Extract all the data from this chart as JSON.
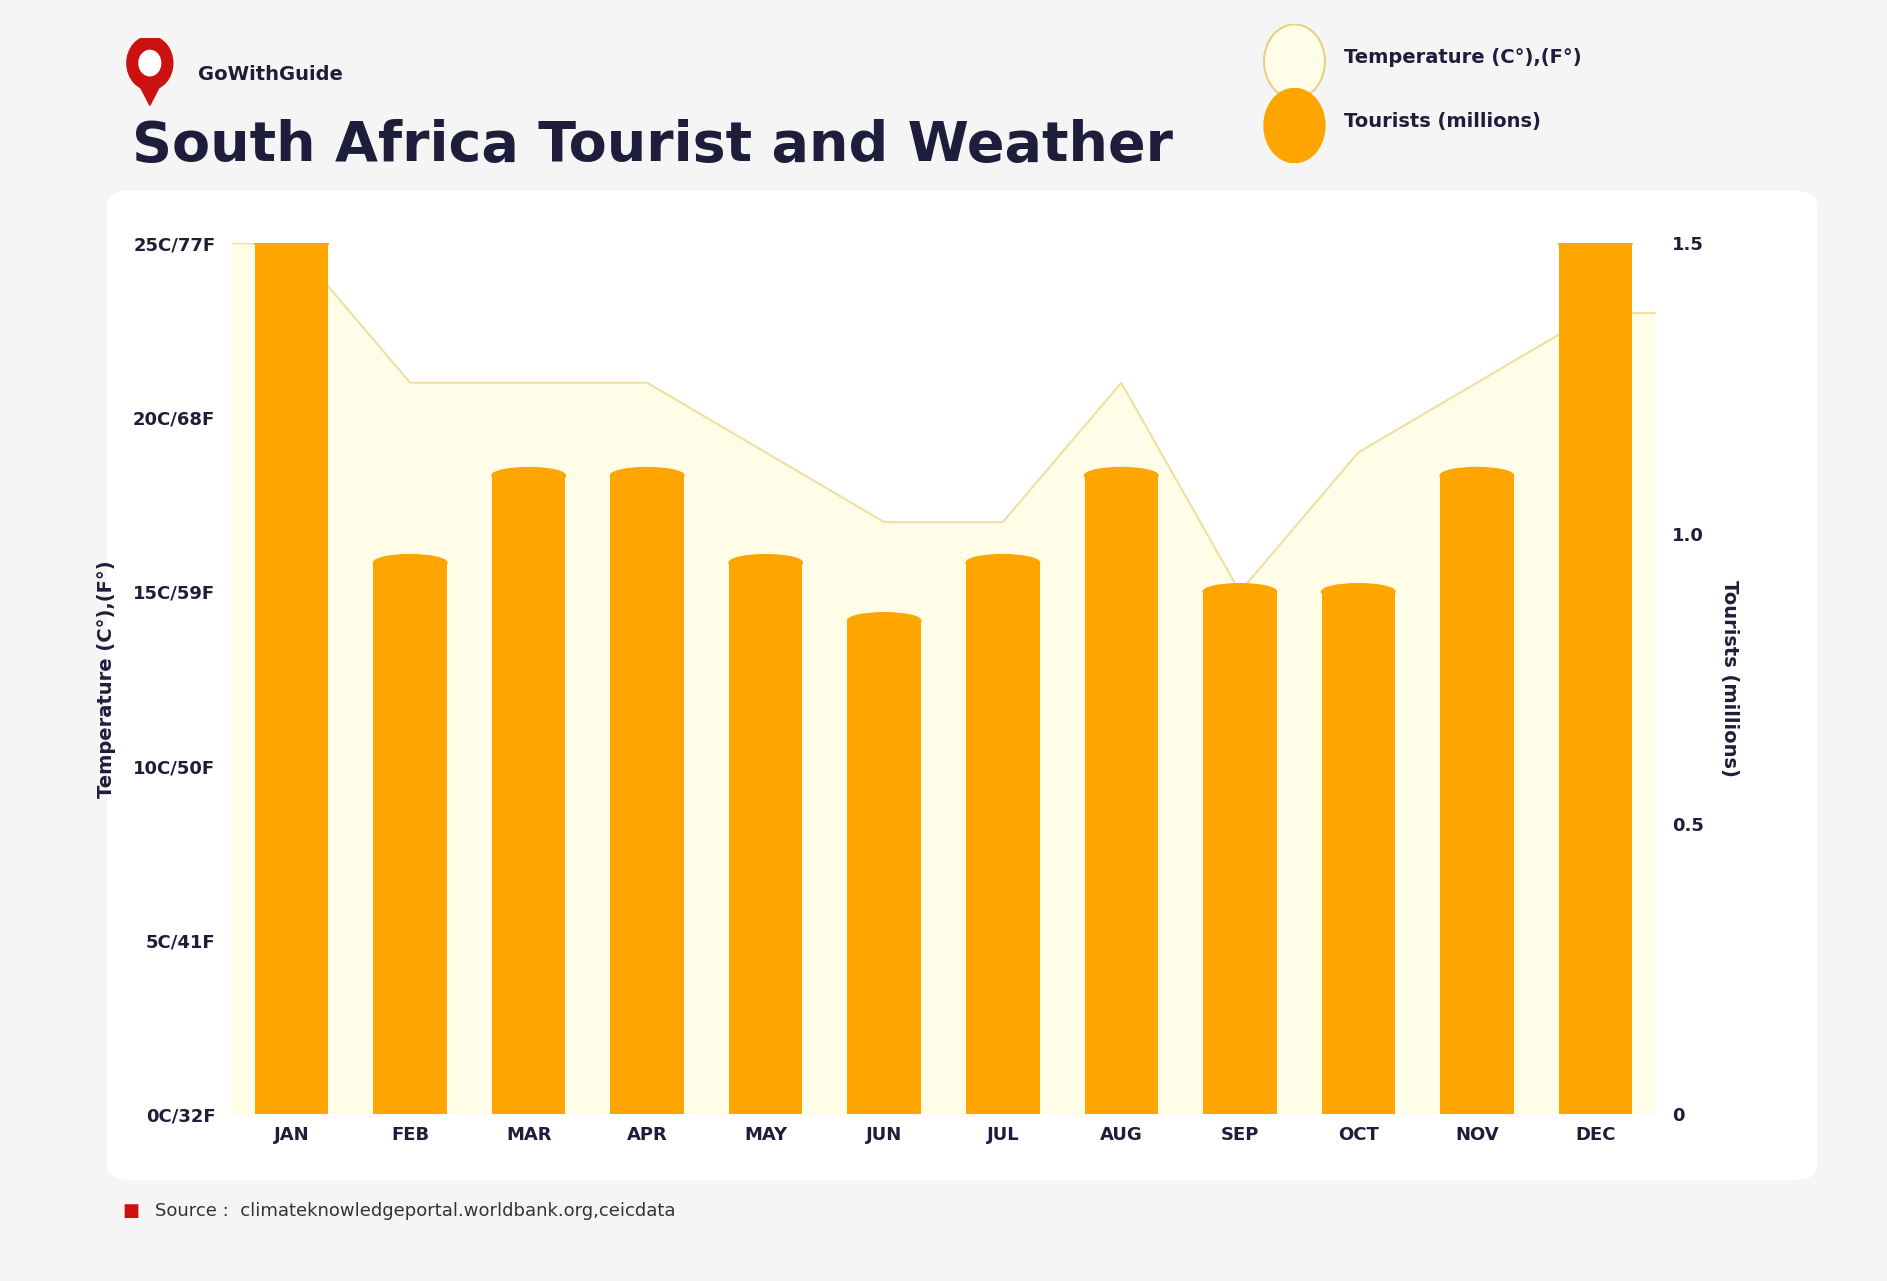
{
  "months": [
    "JAN",
    "FEB",
    "MAR",
    "APR",
    "MAY",
    "JUN",
    "JUL",
    "AUG",
    "SEP",
    "OCT",
    "NOV",
    "DEC"
  ],
  "tourists_millions": [
    1.5,
    0.95,
    1.1,
    1.1,
    0.95,
    0.85,
    0.95,
    1.1,
    0.9,
    0.9,
    1.1,
    1.5
  ],
  "temperature_c": [
    25,
    21,
    21,
    21,
    19,
    17,
    17,
    21,
    15,
    19,
    21,
    23
  ],
  "bar_color": "#FFA500",
  "area_color": "#FFFDE7",
  "area_edge_color": "#F0E0A0",
  "background_color": "#F5F5F5",
  "chart_bg": "#FFFFFF",
  "title": "South Africa Tourist and Weather",
  "ylabel_left": "Temperature (C°),(F°)",
  "ylabel_right": "Tourists (millions)",
  "yticks_left_c": [
    0,
    5,
    10,
    15,
    20,
    25
  ],
  "ytick_labels_left": [
    "0C/32F",
    "5C/41F",
    "10C/50F",
    "15C/59F",
    "20C/68F",
    "25C/77F"
  ],
  "yticks_right": [
    0,
    0.5,
    1.0,
    1.5
  ],
  "source_text": "Source :  climateknowledgeportal.worldbank.org,ceicdata",
  "legend_temp_label": "Temperature (C°),(F°)",
  "legend_tourist_label": "Tourists (millions)",
  "brand_text": "GoWithGuide",
  "title_color": "#1e1e3c",
  "text_color": "#1e1e3c",
  "source_color": "#333333",
  "temp_max_c": 25,
  "tourist_max": 1.5
}
